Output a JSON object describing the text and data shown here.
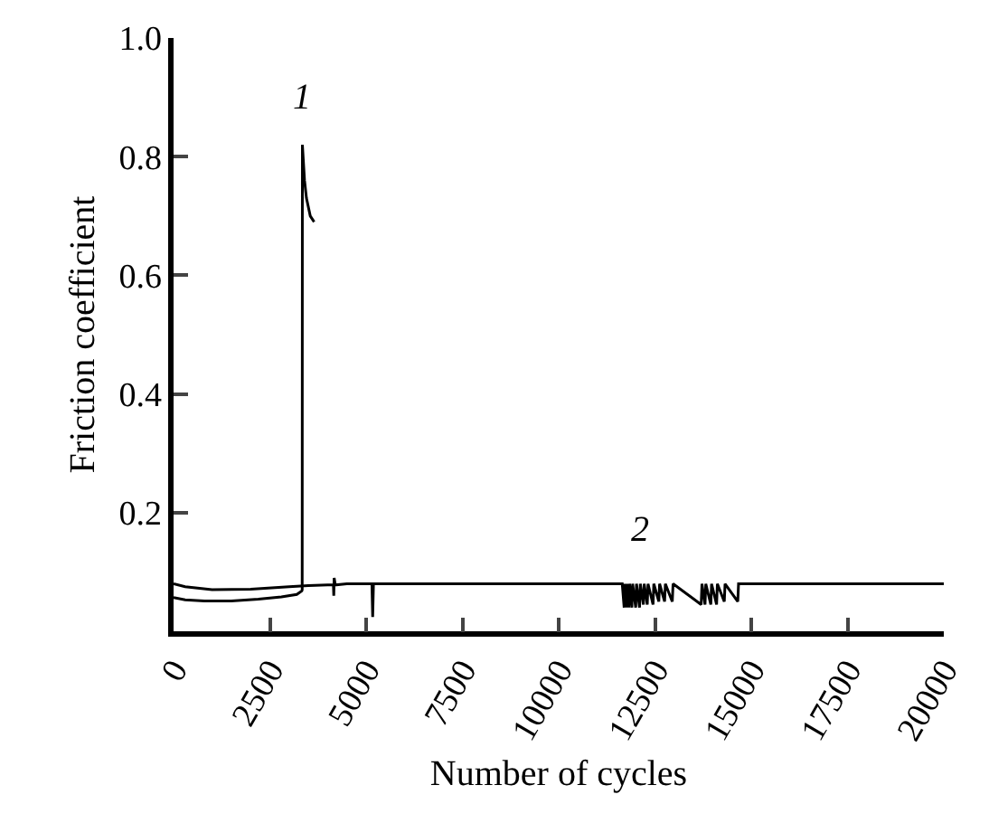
{
  "chart_data": {
    "type": "line",
    "xlabel": "Number of cycles",
    "ylabel": "Friction coefficient",
    "xlim": [
      0,
      20000
    ],
    "xticks": [
      0,
      2500,
      5000,
      7500,
      10000,
      12500,
      15000,
      17500,
      20000
    ],
    "ylim": [
      0,
      1.0
    ],
    "yticks": [
      {
        "value": 0,
        "label": null
      },
      0.2,
      0.4,
      0.6,
      0.8,
      {
        "value": 1.0,
        "label": "1.0"
      }
    ],
    "legend": false,
    "marker": "none",
    "line_style": "solid",
    "series": [
      {
        "name": "1",
        "color": "#000000",
        "x": [
          0,
          300,
          800,
          1500,
          2200,
          2800,
          3200,
          3330,
          3340,
          3345,
          3400,
          3450,
          3550,
          3650
        ],
        "values": [
          0.057,
          0.053,
          0.051,
          0.051,
          0.054,
          0.058,
          0.062,
          0.068,
          0.07,
          0.82,
          0.76,
          0.73,
          0.7,
          0.69
        ]
      },
      {
        "name": "2",
        "color": "#000000",
        "x": [
          0,
          300,
          1000,
          2000,
          3000,
          3500,
          4000,
          4150,
          4160,
          4170,
          4200,
          4500,
          5150,
          5170,
          5190,
          7500,
          10000,
          11650,
          11700,
          11720,
          11760,
          11780,
          11820,
          11840,
          11900,
          11920,
          12000,
          12020,
          12100,
          12120,
          12200,
          12220,
          12300,
          12320,
          12450,
          12470,
          12600,
          12620,
          12750,
          12770,
          12950,
          12970,
          13700,
          13720,
          13800,
          13820,
          13950,
          13970,
          14100,
          14120,
          14300,
          14320,
          14650,
          14670,
          15000,
          17500,
          20000
        ],
        "values": [
          0.08,
          0.075,
          0.07,
          0.071,
          0.075,
          0.077,
          0.078,
          0.078,
          0.06,
          0.09,
          0.078,
          0.08,
          0.08,
          0.024,
          0.08,
          0.08,
          0.08,
          0.08,
          0.04,
          0.08,
          0.04,
          0.08,
          0.04,
          0.08,
          0.04,
          0.08,
          0.04,
          0.08,
          0.04,
          0.08,
          0.045,
          0.08,
          0.045,
          0.08,
          0.045,
          0.08,
          0.05,
          0.08,
          0.05,
          0.08,
          0.05,
          0.08,
          0.045,
          0.08,
          0.045,
          0.08,
          0.045,
          0.08,
          0.045,
          0.08,
          0.05,
          0.08,
          0.05,
          0.08,
          0.08,
          0.08,
          0.08
        ]
      }
    ]
  }
}
